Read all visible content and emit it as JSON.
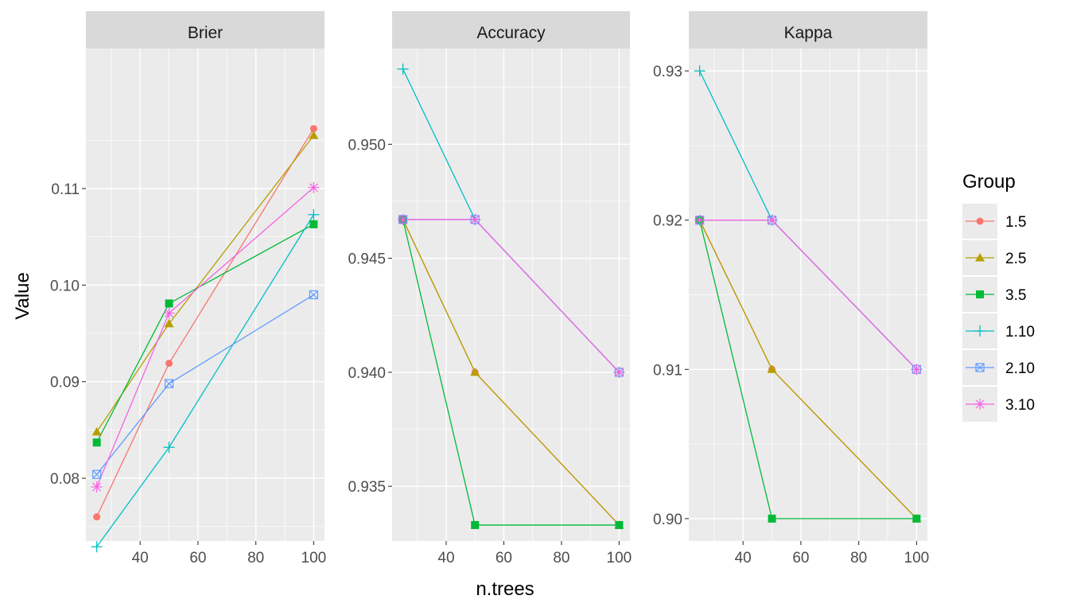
{
  "chart_data": {
    "type": "line",
    "xlabel": "n.trees",
    "ylabel": "Value",
    "x": [
      25,
      50,
      100
    ],
    "legend": {
      "title": "Group",
      "placement": "right"
    },
    "series_style": [
      {
        "name": "1.5",
        "color": "#F8766D",
        "marker": "circle"
      },
      {
        "name": "2.5",
        "color": "#B79F00",
        "marker": "triangle"
      },
      {
        "name": "3.5",
        "color": "#00BA38",
        "marker": "square"
      },
      {
        "name": "1.10",
        "color": "#00BFC4",
        "marker": "plus"
      },
      {
        "name": "2.10",
        "color": "#619CFF",
        "marker": "square-x"
      },
      {
        "name": "3.10",
        "color": "#F564E3",
        "marker": "asterisk"
      }
    ],
    "panels": [
      {
        "strip": "Brier",
        "ylim": [
          0.0735,
          0.1245
        ],
        "xlim": [
          21.25,
          103.75
        ],
        "x_ticks": [
          40,
          60,
          80,
          100
        ],
        "y_ticks": [
          0.08,
          0.09,
          0.1,
          0.11
        ],
        "y_tick_labels": [
          "0.08",
          "0.09",
          "0.10",
          "0.11"
        ],
        "series": [
          {
            "name": "1.5",
            "values": [
              0.076,
              0.0919,
              0.1162
            ]
          },
          {
            "name": "2.5",
            "values": [
              0.0848,
              0.096,
              0.1155
            ]
          },
          {
            "name": "3.5",
            "values": [
              0.0837,
              0.0981,
              0.1063
            ]
          },
          {
            "name": "1.10",
            "values": [
              0.0729,
              0.0832,
              0.1073
            ]
          },
          {
            "name": "2.10",
            "values": [
              0.0804,
              0.0898,
              0.099
            ]
          },
          {
            "name": "3.10",
            "values": [
              0.0791,
              0.0971,
              0.1101
            ]
          }
        ]
      },
      {
        "strip": "Accuracy",
        "ylim": [
          0.9326,
          0.9542
        ],
        "xlim": [
          21.25,
          103.75
        ],
        "x_ticks": [
          40,
          60,
          80,
          100
        ],
        "y_ticks": [
          0.935,
          0.94,
          0.945,
          0.95
        ],
        "y_tick_labels": [
          "0.935",
          "0.940",
          "0.945",
          "0.950"
        ],
        "series": [
          {
            "name": "1.5",
            "values": [
              0.9467,
              0.94,
              0.9333
            ]
          },
          {
            "name": "2.5",
            "values": [
              0.9467,
              0.94,
              0.9333
            ]
          },
          {
            "name": "3.5",
            "values": [
              0.9467,
              0.9333,
              0.9333
            ]
          },
          {
            "name": "1.10",
            "values": [
              0.9533,
              0.9467,
              0.94
            ]
          },
          {
            "name": "2.10",
            "values": [
              0.9467,
              0.9467,
              0.94
            ]
          },
          {
            "name": "3.10",
            "values": [
              0.9467,
              0.9467,
              0.94
            ]
          }
        ]
      },
      {
        "strip": "Kappa",
        "ylim": [
          0.8985,
          0.9315
        ],
        "xlim": [
          21.25,
          103.75
        ],
        "x_ticks": [
          40,
          60,
          80,
          100
        ],
        "y_ticks": [
          0.9,
          0.91,
          0.92,
          0.93
        ],
        "y_tick_labels": [
          "0.90",
          "0.91",
          "0.92",
          "0.93"
        ],
        "series": [
          {
            "name": "1.5",
            "values": [
              0.92,
              0.91,
              0.9
            ]
          },
          {
            "name": "2.5",
            "values": [
              0.92,
              0.91,
              0.9
            ]
          },
          {
            "name": "3.5",
            "values": [
              0.92,
              0.9,
              0.9
            ]
          },
          {
            "name": "1.10",
            "values": [
              0.93,
              0.92,
              0.91
            ]
          },
          {
            "name": "2.10",
            "values": [
              0.92,
              0.92,
              0.91
            ]
          },
          {
            "name": "3.10",
            "values": [
              0.92,
              0.92,
              0.91
            ]
          }
        ]
      }
    ]
  }
}
